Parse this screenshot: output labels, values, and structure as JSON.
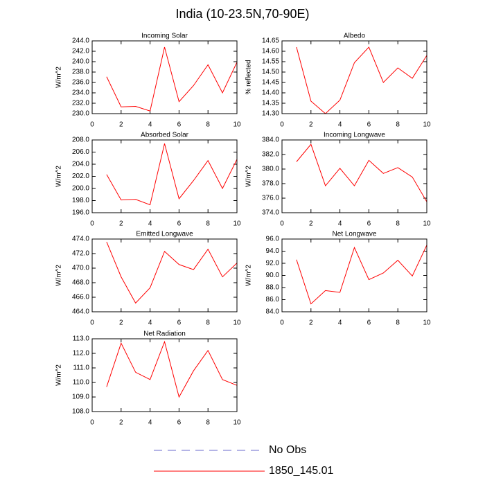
{
  "title": "India (10-23.5N,70-90E)",
  "legend": [
    {
      "name": "No Obs",
      "color": "#6a6acd",
      "dashed": true
    },
    {
      "name": "1850_145.01",
      "color": "#ff0000",
      "dashed": false
    }
  ],
  "chart_data": [
    {
      "type": "line",
      "title": "Incoming Solar",
      "ylabel": "W/m^2",
      "color": "#ff0000",
      "x": [
        1,
        2,
        3,
        4,
        5,
        6,
        7,
        8,
        9,
        10
      ],
      "values": [
        237.1,
        231.3,
        231.4,
        230.5,
        242.8,
        232.3,
        235.4,
        239.4,
        234.0,
        239.9
      ],
      "xlim": [
        0,
        10
      ],
      "xticks": [
        0,
        2,
        4,
        6,
        8,
        10
      ],
      "ylim": [
        230,
        244
      ],
      "yticks": [
        {
          "value": 230,
          "label": "230.0"
        },
        {
          "value": 232,
          "label": "232.0"
        },
        {
          "value": 234,
          "label": "234.0"
        },
        {
          "value": 236,
          "label": "236.0"
        },
        {
          "value": 238,
          "label": "238.0"
        },
        {
          "value": 240,
          "label": "240.0"
        },
        {
          "value": 242,
          "label": "242.0"
        },
        {
          "value": 244,
          "label": "244.0"
        }
      ]
    },
    {
      "type": "line",
      "title": "Albedo",
      "ylabel": "% reflected",
      "color": "#ff0000",
      "x": [
        1,
        2,
        3,
        4,
        5,
        6,
        7,
        8,
        9,
        10
      ],
      "values": [
        14.62,
        14.36,
        14.3,
        14.365,
        14.545,
        14.62,
        14.45,
        14.52,
        14.47,
        14.58
      ],
      "xlim": [
        0,
        10
      ],
      "xticks": [
        0,
        2,
        4,
        6,
        8,
        10
      ],
      "ylim": [
        14.3,
        14.65
      ],
      "yticks": [
        {
          "value": 14.3,
          "label": "14.30"
        },
        {
          "value": 14.35,
          "label": "14.35"
        },
        {
          "value": 14.4,
          "label": "14.40"
        },
        {
          "value": 14.45,
          "label": "14.45"
        },
        {
          "value": 14.5,
          "label": "14.50"
        },
        {
          "value": 14.55,
          "label": "14.55"
        },
        {
          "value": 14.6,
          "label": "14.60"
        },
        {
          "value": 14.65,
          "label": "14.65"
        }
      ]
    },
    {
      "type": "line",
      "title": "Absorbed Solar",
      "ylabel": "W/m^2",
      "color": "#ff0000",
      "x": [
        1,
        2,
        3,
        4,
        5,
        6,
        7,
        8,
        9,
        10
      ],
      "values": [
        202.3,
        198.1,
        198.2,
        197.3,
        207.4,
        198.3,
        201.3,
        204.6,
        200.0,
        204.8
      ],
      "xlim": [
        0,
        10
      ],
      "xticks": [
        0,
        2,
        4,
        6,
        8,
        10
      ],
      "ylim": [
        196,
        208
      ],
      "yticks": [
        {
          "value": 196,
          "label": "196.0"
        },
        {
          "value": 198,
          "label": "198.0"
        },
        {
          "value": 200,
          "label": "200.0"
        },
        {
          "value": 202,
          "label": "202.0"
        },
        {
          "value": 204,
          "label": "204.0"
        },
        {
          "value": 206,
          "label": "206.0"
        },
        {
          "value": 208,
          "label": "208.0"
        }
      ]
    },
    {
      "type": "line",
      "title": "Incoming Longwave",
      "ylabel": "W/m^2",
      "color": "#ff0000",
      "x": [
        1,
        2,
        3,
        4,
        5,
        6,
        7,
        8,
        9,
        10
      ],
      "values": [
        381.0,
        383.4,
        377.7,
        380.1,
        377.7,
        381.2,
        379.4,
        380.2,
        378.9,
        375.5
      ],
      "xlim": [
        0,
        10
      ],
      "xticks": [
        0,
        2,
        4,
        6,
        8,
        10
      ],
      "ylim": [
        374,
        384
      ],
      "yticks": [
        {
          "value": 374,
          "label": "374.0"
        },
        {
          "value": 376,
          "label": "376.0"
        },
        {
          "value": 378,
          "label": "378.0"
        },
        {
          "value": 380,
          "label": "380.0"
        },
        {
          "value": 382,
          "label": "382.0"
        },
        {
          "value": 384,
          "label": "384.0"
        }
      ]
    },
    {
      "type": "line",
      "title": "Emitted Longwave",
      "ylabel": "W/m^2",
      "color": "#ff0000",
      "x": [
        1,
        2,
        3,
        4,
        5,
        6,
        7,
        8,
        9,
        10
      ],
      "values": [
        473.6,
        468.8,
        465.2,
        467.3,
        472.3,
        470.5,
        469.8,
        472.6,
        468.8,
        470.7
      ],
      "xlim": [
        0,
        10
      ],
      "xticks": [
        0,
        2,
        4,
        6,
        8,
        10
      ],
      "ylim": [
        464,
        474
      ],
      "yticks": [
        {
          "value": 464,
          "label": "464.0"
        },
        {
          "value": 466,
          "label": "466.0"
        },
        {
          "value": 468,
          "label": "468.0"
        },
        {
          "value": 470,
          "label": "470.0"
        },
        {
          "value": 472,
          "label": "472.0"
        },
        {
          "value": 474,
          "label": "474.0"
        }
      ]
    },
    {
      "type": "line",
      "title": "Net Longwave",
      "ylabel": "W/m^2",
      "color": "#ff0000",
      "x": [
        1,
        2,
        3,
        4,
        5,
        6,
        7,
        8,
        9,
        10
      ],
      "values": [
        92.6,
        85.3,
        87.5,
        87.2,
        94.6,
        89.3,
        90.4,
        92.5,
        89.9,
        95.0
      ],
      "xlim": [
        0,
        10
      ],
      "xticks": [
        0,
        2,
        4,
        6,
        8,
        10
      ],
      "ylim": [
        84,
        96
      ],
      "yticks": [
        {
          "value": 84,
          "label": "84.0"
        },
        {
          "value": 86,
          "label": "86.0"
        },
        {
          "value": 88,
          "label": "88.0"
        },
        {
          "value": 90,
          "label": "90.0"
        },
        {
          "value": 92,
          "label": "92.0"
        },
        {
          "value": 94,
          "label": "94.0"
        },
        {
          "value": 96,
          "label": "96.0"
        }
      ]
    },
    {
      "type": "line",
      "title": "Net Radiation",
      "ylabel": "W/m^2",
      "color": "#ff0000",
      "x": [
        1,
        2,
        3,
        4,
        5,
        6,
        7,
        8,
        9,
        10
      ],
      "values": [
        109.7,
        112.7,
        110.7,
        110.2,
        112.8,
        109.0,
        110.8,
        112.2,
        110.2,
        109.8
      ],
      "xlim": [
        0,
        10
      ],
      "xticks": [
        0,
        2,
        4,
        6,
        8,
        10
      ],
      "ylim": [
        108,
        113
      ],
      "yticks": [
        {
          "value": 108,
          "label": "108.0"
        },
        {
          "value": 109,
          "label": "109.0"
        },
        {
          "value": 110,
          "label": "110.0"
        },
        {
          "value": 111,
          "label": "111.0"
        },
        {
          "value": 112,
          "label": "112.0"
        },
        {
          "value": 113,
          "label": "113.0"
        }
      ]
    }
  ]
}
